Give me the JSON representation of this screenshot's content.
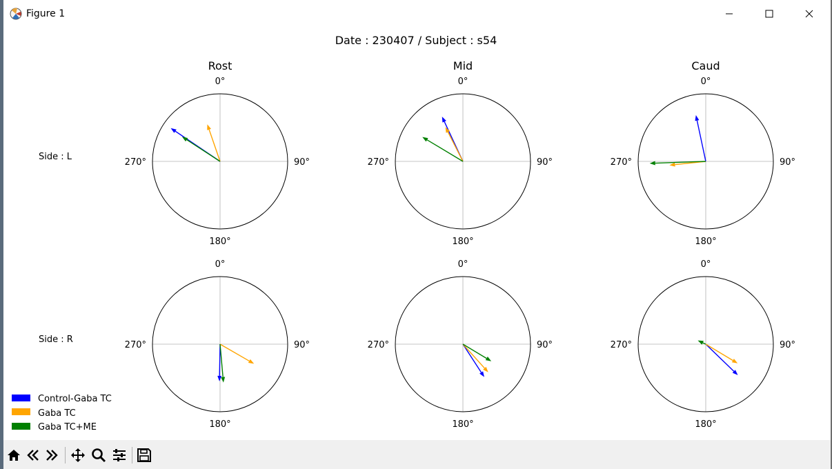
{
  "window": {
    "title": "Figure 1",
    "controls": {
      "minimize": "minimize",
      "maximize": "maximize",
      "close": "close"
    }
  },
  "figure": {
    "suptitle": "Date : 230407 / Subject : s54",
    "column_titles": [
      "Rost",
      "Mid",
      "Caud"
    ],
    "row_labels": [
      "Side : L",
      "Side : R"
    ],
    "angle_tick_labels": [
      "0°",
      "90°",
      "180°",
      "270°"
    ]
  },
  "legend": {
    "placement": "bottom-left",
    "items": [
      {
        "label": "Control-Gaba TC",
        "color": "#0000ff"
      },
      {
        "label": "Gaba TC",
        "color": "#ffa500"
      },
      {
        "label": "Gaba TC+ME",
        "color": "#008000"
      }
    ]
  },
  "chart_data": {
    "type": "polar-quiver",
    "suptitle": "Date : 230407 / Subject : s54",
    "rmax": 1.0,
    "theta_zero": "N",
    "theta_direction": "clockwise",
    "series_order": [
      "Control-Gaba TC",
      "Gaba TC",
      "Gaba TC+ME"
    ],
    "series_colors": [
      "#0000ff",
      "#ffa500",
      "#008000"
    ],
    "panels": [
      {
        "row": "Side : L",
        "col": "Rost",
        "vectors": [
          {
            "series": "Control-Gaba TC",
            "angle_deg": 304,
            "r": 0.88
          },
          {
            "series": "Gaba TC",
            "angle_deg": 341,
            "r": 0.58
          },
          {
            "series": "Gaba TC+ME",
            "angle_deg": 303,
            "r": 0.67
          }
        ]
      },
      {
        "row": "Side : L",
        "col": "Mid",
        "vectors": [
          {
            "series": "Control-Gaba TC",
            "angle_deg": 335,
            "r": 0.73
          },
          {
            "series": "Gaba TC",
            "angle_deg": 333,
            "r": 0.57
          },
          {
            "series": "Gaba TC+ME",
            "angle_deg": 301,
            "r": 0.7
          }
        ]
      },
      {
        "row": "Side : L",
        "col": "Caud",
        "vectors": [
          {
            "series": "Control-Gaba TC",
            "angle_deg": 348,
            "r": 0.7
          },
          {
            "series": "Gaba TC",
            "angle_deg": 264,
            "r": 0.54
          },
          {
            "series": "Gaba TC+ME",
            "angle_deg": 268,
            "r": 0.83
          }
        ]
      },
      {
        "row": "Side : R",
        "col": "Rost",
        "vectors": [
          {
            "series": "Control-Gaba TC",
            "angle_deg": 181,
            "r": 0.55
          },
          {
            "series": "Gaba TC",
            "angle_deg": 120,
            "r": 0.58
          },
          {
            "series": "Gaba TC+ME",
            "angle_deg": 175,
            "r": 0.57
          }
        ]
      },
      {
        "row": "Side : R",
        "col": "Mid",
        "vectors": [
          {
            "series": "Control-Gaba TC",
            "angle_deg": 147,
            "r": 0.58
          },
          {
            "series": "Gaba TC",
            "angle_deg": 138,
            "r": 0.56
          },
          {
            "series": "Gaba TC+ME",
            "angle_deg": 121,
            "r": 0.49
          }
        ]
      },
      {
        "row": "Side : R",
        "col": "Caud",
        "vectors": [
          {
            "series": "Control-Gaba TC",
            "angle_deg": 134,
            "r": 0.66
          },
          {
            "series": "Gaba TC",
            "angle_deg": 121,
            "r": 0.55
          },
          {
            "series": "Gaba TC+ME",
            "angle_deg": 295,
            "r": 0.13
          }
        ]
      }
    ]
  },
  "toolbar": {
    "buttons": [
      "home-icon",
      "back-icon",
      "forward-icon",
      "pan-icon",
      "zoom-icon",
      "configure-subplots-icon",
      "save-icon"
    ]
  }
}
